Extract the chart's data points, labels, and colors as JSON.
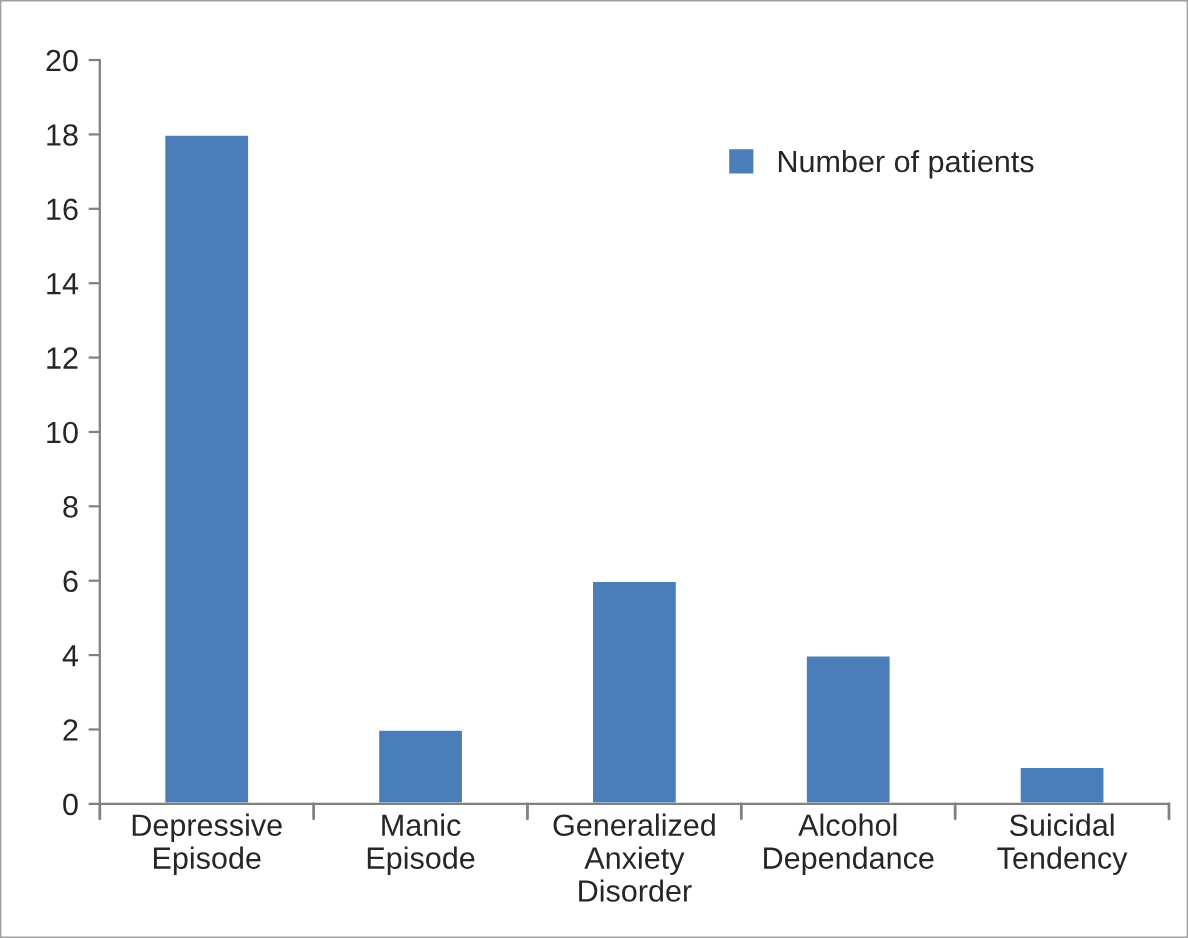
{
  "chart_data": {
    "type": "bar",
    "categories": [
      "Depressive\nEpisode",
      "Manic\nEpisode",
      "Generalized\nAnxiety\nDisorder",
      "Alcohol\nDependance",
      "Suicidal\nTendency"
    ],
    "series": [
      {
        "name": "Number of patients",
        "color": "#4a7ebb",
        "values": [
          18,
          2,
          6,
          4,
          1
        ]
      }
    ],
    "ylim": [
      0,
      20
    ],
    "yticks": [
      0,
      2,
      4,
      6,
      8,
      10,
      12,
      14,
      16,
      18,
      20
    ],
    "grid": false,
    "legend": "top right"
  }
}
